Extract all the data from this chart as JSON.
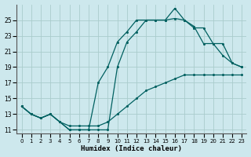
{
  "xlabel": "Humidex (Indice chaleur)",
  "bg_color": "#cde8ed",
  "grid_color": "#aacccc",
  "line_color": "#006060",
  "ylim": [
    10.5,
    27
  ],
  "xlim": [
    -0.5,
    23.5
  ],
  "yticks": [
    11,
    13,
    15,
    17,
    19,
    21,
    23,
    25
  ],
  "xticks": [
    0,
    1,
    2,
    3,
    4,
    5,
    6,
    7,
    8,
    9,
    10,
    11,
    12,
    13,
    14,
    15,
    16,
    17,
    18,
    19,
    20,
    21,
    22,
    23
  ],
  "line1_x": [
    0,
    1,
    2,
    3,
    4,
    5,
    6,
    7,
    8,
    9,
    10,
    11,
    12,
    13,
    14,
    15,
    16,
    17,
    18,
    19,
    20,
    21,
    22,
    23
  ],
  "line1_y": [
    14.0,
    13.0,
    12.5,
    13.0,
    12.0,
    11.5,
    11.5,
    11.5,
    11.5,
    12.0,
    13.0,
    14.0,
    15.0,
    16.0,
    16.5,
    17.0,
    17.5,
    18.0,
    18.0,
    18.0,
    18.0,
    18.0,
    18.0,
    18.0
  ],
  "line2_x": [
    0,
    1,
    2,
    3,
    4,
    5,
    6,
    7,
    8,
    9,
    10,
    11,
    12,
    13,
    14,
    15,
    16,
    17,
    18,
    19,
    20,
    21,
    22,
    23
  ],
  "line2_y": [
    14.0,
    13.0,
    12.5,
    13.0,
    12.0,
    11.0,
    11.0,
    11.0,
    11.0,
    11.0,
    19.0,
    22.2,
    23.5,
    25.0,
    25.0,
    25.0,
    25.2,
    25.0,
    24.0,
    24.0,
    22.0,
    22.0,
    19.5,
    19.0
  ],
  "line3_x": [
    0,
    1,
    2,
    3,
    4,
    5,
    6,
    7,
    8,
    9,
    10,
    11,
    12,
    13,
    14,
    15,
    16,
    17,
    18,
    19,
    20,
    21,
    22,
    23
  ],
  "line3_y": [
    14.0,
    13.0,
    12.5,
    13.0,
    12.0,
    11.0,
    11.0,
    11.0,
    17.0,
    19.0,
    22.2,
    23.5,
    25.0,
    25.0,
    25.0,
    25.0,
    26.5,
    25.0,
    24.2,
    22.0,
    22.0,
    20.5,
    19.5,
    19.0
  ]
}
